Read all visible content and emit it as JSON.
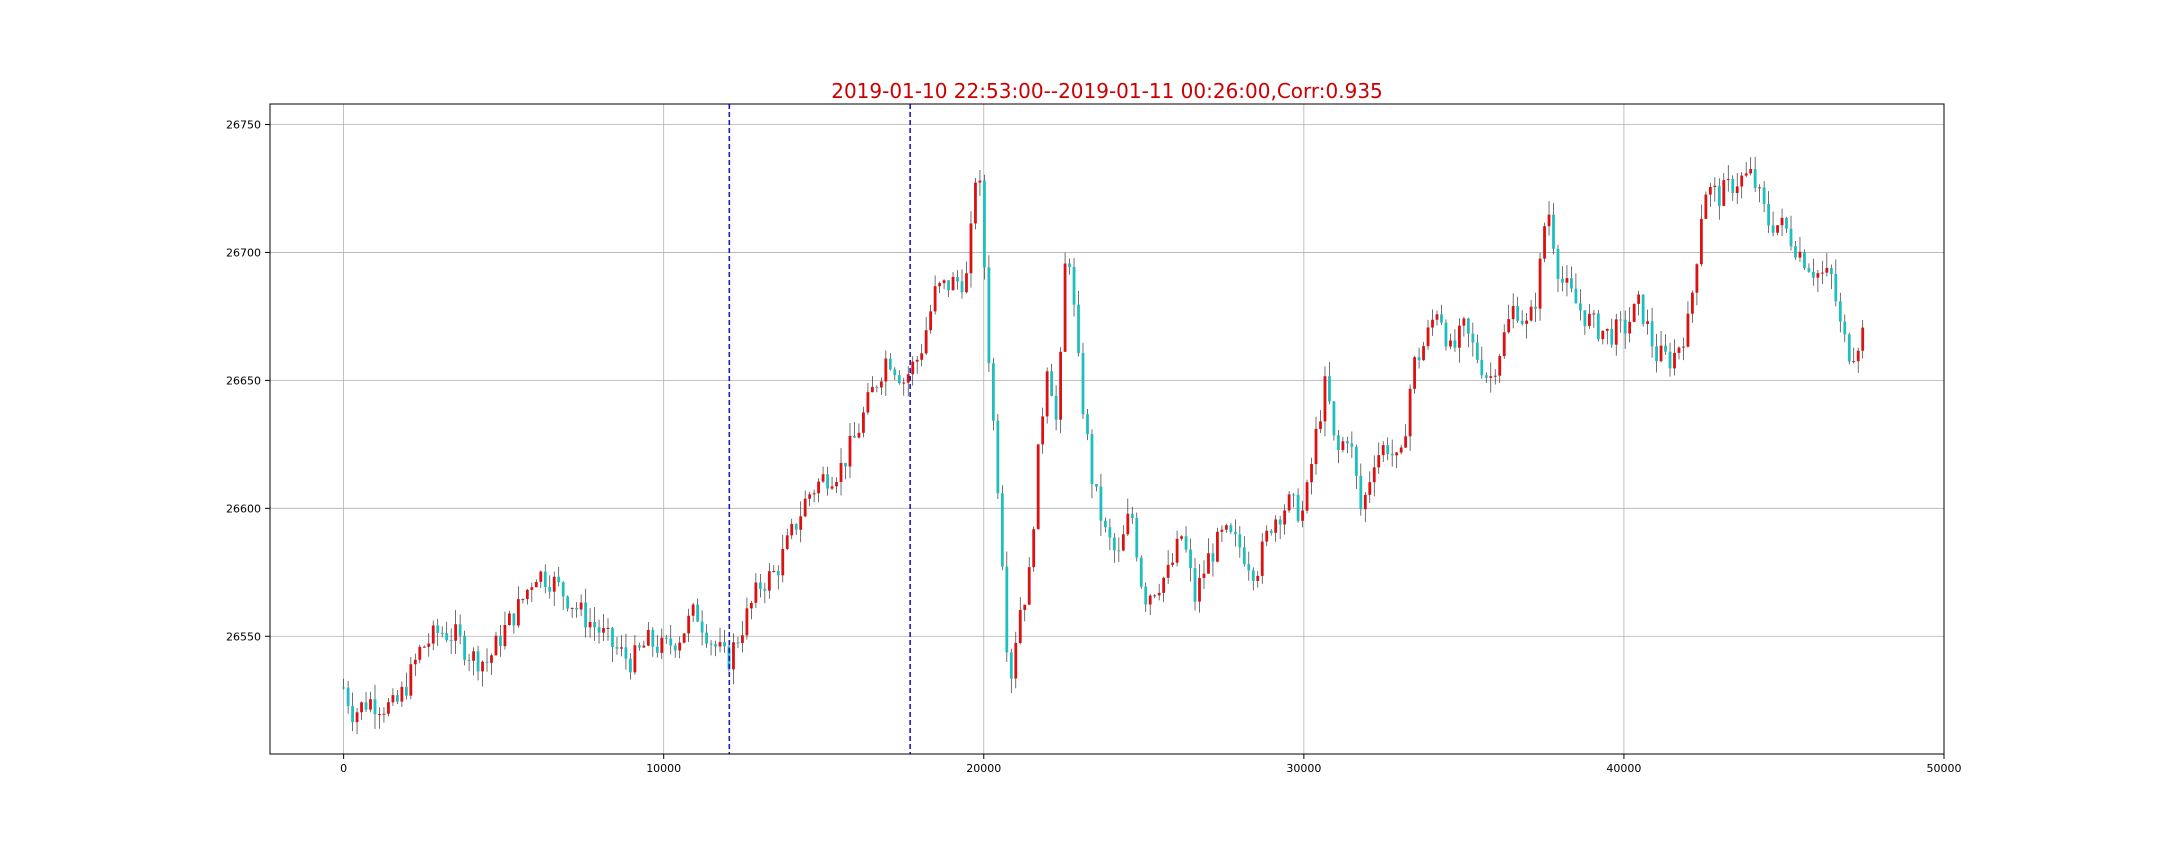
{
  "chart_data": {
    "type": "candlestick",
    "title": "2019-01-10 22:53:00--2019-01-11 00:26:00,Corr:0.935",
    "xlabel": "",
    "ylabel": "",
    "xlim": [
      -2300,
      50000
    ],
    "ylim": [
      26504,
      26758
    ],
    "x_ticks": [
      0,
      10000,
      20000,
      30000,
      40000,
      50000
    ],
    "x_tick_labels": [
      "0",
      "10000",
      "20000",
      "30000",
      "40000",
      "50000"
    ],
    "y_ticks": [
      26550,
      26600,
      26650,
      26700,
      26750
    ],
    "y_tick_labels": [
      "26550",
      "26600",
      "26650",
      "26700",
      "26750"
    ],
    "grid": true,
    "colors": {
      "title": "#cc0000",
      "up": "#dd1111",
      "down": "#1fbfbf",
      "wick": "#333333",
      "marker": "#1a1acc",
      "grid": "#b0b0b0"
    },
    "vertical_markers": [
      12050,
      17700
    ],
    "price_path": [
      [
        0,
        26530
      ],
      [
        300,
        26520
      ],
      [
        800,
        26525
      ],
      [
        1200,
        26523
      ],
      [
        1600,
        26522
      ],
      [
        2000,
        26532
      ],
      [
        2400,
        26545
      ],
      [
        3000,
        26552
      ],
      [
        3500,
        26550
      ],
      [
        4000,
        26542
      ],
      [
        4500,
        26540
      ],
      [
        5000,
        26552
      ],
      [
        5500,
        26562
      ],
      [
        6000,
        26575
      ],
      [
        6500,
        26572
      ],
      [
        7000,
        26565
      ],
      [
        7500,
        26558
      ],
      [
        8000,
        26552
      ],
      [
        8500,
        26545
      ],
      [
        9000,
        26540
      ],
      [
        9500,
        26548
      ],
      [
        10000,
        26545
      ],
      [
        10500,
        26550
      ],
      [
        11000,
        26560
      ],
      [
        11500,
        26548
      ],
      [
        12000,
        26540
      ],
      [
        12500,
        26555
      ],
      [
        13000,
        26570
      ],
      [
        13500,
        26575
      ],
      [
        14000,
        26590
      ],
      [
        14500,
        26605
      ],
      [
        15000,
        26612
      ],
      [
        15500,
        26615
      ],
      [
        16000,
        26628
      ],
      [
        16500,
        26645
      ],
      [
        17000,
        26660
      ],
      [
        17500,
        26650
      ],
      [
        18000,
        26660
      ],
      [
        18500,
        26685
      ],
      [
        19000,
        26688
      ],
      [
        19500,
        26690
      ],
      [
        19800,
        26740
      ],
      [
        20000,
        26700
      ],
      [
        20200,
        26650
      ],
      [
        20500,
        26600
      ],
      [
        20800,
        26530
      ],
      [
        21100,
        26560
      ],
      [
        21400,
        26570
      ],
      [
        21700,
        26620
      ],
      [
        22000,
        26660
      ],
      [
        22300,
        26630
      ],
      [
        22600,
        26710
      ],
      [
        23000,
        26650
      ],
      [
        23400,
        26610
      ],
      [
        23800,
        26590
      ],
      [
        24200,
        26580
      ],
      [
        24600,
        26600
      ],
      [
        25000,
        26565
      ],
      [
        25400,
        26570
      ],
      [
        25800,
        26575
      ],
      [
        26200,
        26590
      ],
      [
        26600,
        26565
      ],
      [
        27000,
        26580
      ],
      [
        27500,
        26590
      ],
      [
        28000,
        26585
      ],
      [
        28500,
        26575
      ],
      [
        29000,
        26595
      ],
      [
        29500,
        26602
      ],
      [
        30000,
        26598
      ],
      [
        30400,
        26630
      ],
      [
        30700,
        26650
      ],
      [
        31000,
        26620
      ],
      [
        31400,
        26630
      ],
      [
        31800,
        26598
      ],
      [
        32200,
        26620
      ],
      [
        32600,
        26625
      ],
      [
        33000,
        26615
      ],
      [
        33400,
        26655
      ],
      [
        33800,
        26665
      ],
      [
        34200,
        26680
      ],
      [
        34600,
        26660
      ],
      [
        35000,
        26670
      ],
      [
        35400,
        26660
      ],
      [
        35800,
        26650
      ],
      [
        36200,
        26665
      ],
      [
        36600,
        26680
      ],
      [
        37000,
        26670
      ],
      [
        37300,
        26685
      ],
      [
        37600,
        26720
      ],
      [
        38000,
        26690
      ],
      [
        38500,
        26680
      ],
      [
        39000,
        26672
      ],
      [
        39500,
        26668
      ],
      [
        40000,
        26670
      ],
      [
        40500,
        26680
      ],
      [
        41000,
        26660
      ],
      [
        41500,
        26658
      ],
      [
        42000,
        26672
      ],
      [
        42200,
        26690
      ],
      [
        42500,
        26725
      ],
      [
        43000,
        26722
      ],
      [
        43500,
        26728
      ],
      [
        44000,
        26730
      ],
      [
        44500,
        26712
      ],
      [
        45000,
        26710
      ],
      [
        45500,
        26700
      ],
      [
        46000,
        26692
      ],
      [
        46500,
        26690
      ],
      [
        46800,
        26668
      ],
      [
        47100,
        26660
      ],
      [
        47500,
        26670
      ]
    ]
  }
}
